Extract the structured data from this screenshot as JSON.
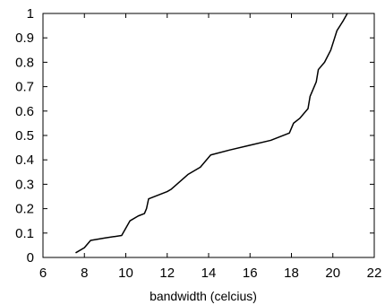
{
  "chart_data": {
    "type": "line",
    "title": "",
    "xlabel": "bandwidth (celcius)",
    "ylabel": "",
    "xlim": [
      6,
      22
    ],
    "ylim": [
      0,
      1
    ],
    "grid": false,
    "x_ticks": [
      6,
      8,
      10,
      12,
      14,
      16,
      18,
      20,
      22
    ],
    "y_ticks": [
      0,
      0.1,
      0.2,
      0.3,
      0.4,
      0.5,
      0.6,
      0.7,
      0.8,
      0.9,
      1
    ],
    "x_tick_labels": [
      "6",
      "8",
      "10",
      "12",
      "14",
      "16",
      "18",
      "20",
      "22"
    ],
    "y_tick_labels": [
      "0",
      "0.1",
      "0.2",
      "0.3",
      "0.4",
      "0.5",
      "0.6",
      "0.7",
      "0.8",
      "0.9",
      "1"
    ],
    "series": [
      {
        "color": "#000000",
        "x": [
          7.6,
          8.0,
          8.3,
          9.0,
          9.8,
          10.0,
          10.2,
          10.6,
          10.9,
          11.0,
          11.1,
          12.0,
          12.2,
          12.6,
          13.0,
          13.6,
          14.1,
          15.0,
          16.0,
          17.0,
          17.9,
          18.1,
          18.4,
          18.8,
          18.9,
          19.0,
          19.2,
          19.3,
          19.6,
          19.9,
          20.2,
          20.5,
          20.7
        ],
        "y": [
          0.02,
          0.04,
          0.07,
          0.08,
          0.09,
          0.12,
          0.15,
          0.17,
          0.18,
          0.2,
          0.24,
          0.27,
          0.28,
          0.31,
          0.34,
          0.37,
          0.42,
          0.44,
          0.46,
          0.48,
          0.51,
          0.55,
          0.57,
          0.61,
          0.66,
          0.68,
          0.72,
          0.77,
          0.8,
          0.85,
          0.93,
          0.97,
          1.0
        ]
      }
    ]
  }
}
